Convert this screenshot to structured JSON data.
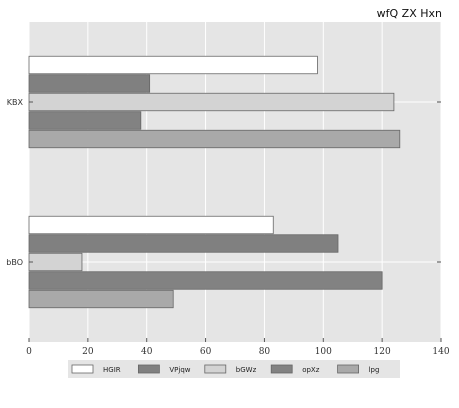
{
  "chart_data": {
    "type": "bar",
    "orientation": "horizontal",
    "title": "wfQ ZX Hxn",
    "categories": [
      "KBX",
      "bBO"
    ],
    "xlim": [
      0,
      140
    ],
    "xticks": [
      0,
      20,
      40,
      60,
      80,
      100,
      120,
      140
    ],
    "grid": true,
    "legend_position": "bottom",
    "series": [
      {
        "name": "HGIR",
        "color": "#ffffff",
        "values": [
          98,
          83
        ]
      },
      {
        "name": "VPjqw",
        "color": "#808080",
        "values": [
          41,
          105
        ]
      },
      {
        "name": "bGWz",
        "color": "#d3d3d3",
        "values": [
          124,
          18
        ]
      },
      {
        "name": "opXz",
        "color": "#828282",
        "values": [
          38,
          120
        ]
      },
      {
        "name": "lpg",
        "color": "#a9a9a9",
        "values": [
          126,
          49
        ]
      }
    ]
  }
}
